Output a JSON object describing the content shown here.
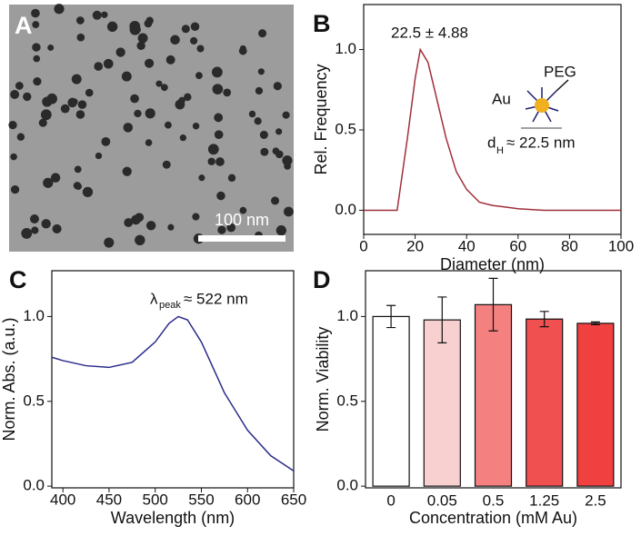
{
  "chart_data": [
    {
      "type": "image",
      "panel": "A",
      "scale_bar": "100 nm"
    },
    {
      "type": "line",
      "panel": "B",
      "x_label": "Diameter (nm)",
      "y_label": "Rel. Frequency",
      "annotation": "22.5 ± 4.88",
      "inset": {
        "core": "Au",
        "shell": "PEG",
        "d": "d",
        "d_sub": "H",
        "d_rest": "≈ 22.5 nm"
      },
      "x": [
        0,
        13,
        17,
        20,
        22,
        25,
        28,
        32,
        36,
        40,
        45,
        50,
        55,
        60,
        70,
        100
      ],
      "values": [
        0,
        0,
        0.45,
        0.82,
        1.0,
        0.92,
        0.72,
        0.45,
        0.24,
        0.13,
        0.05,
        0.03,
        0.02,
        0.01,
        0,
        0
      ],
      "color": "#a0303a",
      "xlim": [
        0,
        100
      ],
      "xticks": [
        0,
        20,
        40,
        60,
        80,
        100
      ],
      "ylim": [
        -0.15,
        1.28
      ],
      "yticks": [
        {
          "value": 0,
          "label": "0.0"
        },
        {
          "value": 0.5,
          "label": "0.5"
        },
        {
          "value": 1,
          "label": "1.0"
        }
      ]
    },
    {
      "type": "line",
      "panel": "C",
      "x_label": "Wavelength (nm)",
      "y_label": "Norm. Abs. (a.u.)",
      "annotation": {
        "symbol": "λ",
        "sub": "peak",
        "rest": "≈ 522 nm"
      },
      "x": [
        388,
        400,
        425,
        450,
        475,
        500,
        515,
        525,
        535,
        550,
        575,
        600,
        625,
        650
      ],
      "values": [
        0.76,
        0.74,
        0.71,
        0.7,
        0.73,
        0.85,
        0.96,
        1.0,
        0.98,
        0.85,
        0.55,
        0.33,
        0.18,
        0.09
      ],
      "color": "#2b2b8a",
      "xlim": [
        388,
        650
      ],
      "xticks": [
        400,
        450,
        500,
        550,
        600,
        650
      ],
      "ylim": [
        -0.01,
        1.27
      ],
      "yticks": [
        {
          "value": 0,
          "label": "0.0"
        },
        {
          "value": 0.5,
          "label": "0.5"
        },
        {
          "value": 1,
          "label": "1.0"
        }
      ]
    },
    {
      "type": "bar",
      "panel": "D",
      "x_label": "Concentration (mM Au)",
      "y_label": "Norm. Viability",
      "categories": [
        "0",
        "0.05",
        "0.5",
        "1.25",
        "2.5"
      ],
      "values": [
        1.0,
        0.98,
        1.07,
        0.985,
        0.96
      ],
      "errors": [
        0.065,
        0.135,
        0.155,
        0.045,
        0.008
      ],
      "colors": [
        "#ffffff",
        "#f9d0d0",
        "#f48080",
        "#f05050",
        "#f04040"
      ],
      "ylim": [
        -0.01,
        1.27
      ],
      "yticks": [
        {
          "value": 0,
          "label": "0.0"
        },
        {
          "value": 0.5,
          "label": "0.5"
        },
        {
          "value": 1,
          "label": "1.0"
        }
      ]
    }
  ]
}
